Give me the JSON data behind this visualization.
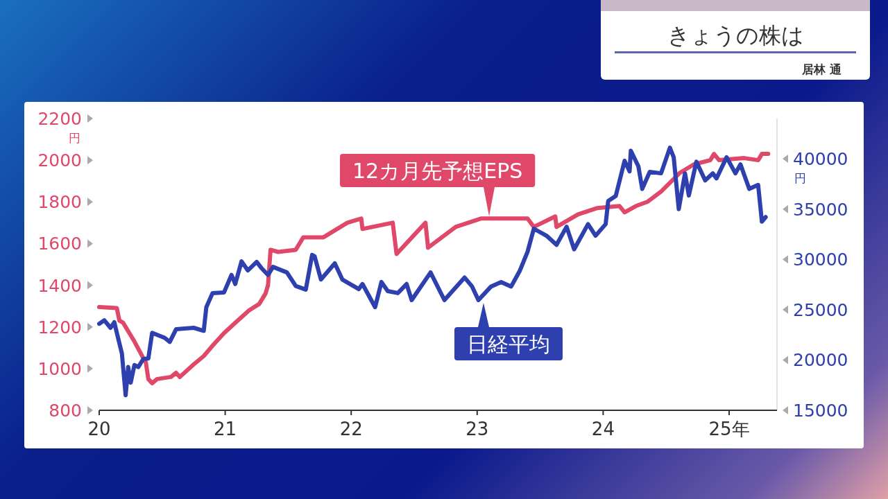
{
  "chart_data": {
    "type": "line",
    "title": "きょうの株は",
    "subtitle": "居林 通",
    "ylabel": "円",
    "y2label": "円",
    "xlim": [
      20,
      25.38
    ],
    "xticks": [
      20,
      21,
      22,
      23,
      24,
      {
        "value": 25,
        "label": "25年"
      }
    ],
    "ylim": [
      800,
      2200
    ],
    "yticks": [
      800,
      1000,
      1200,
      1400,
      1600,
      1800,
      2000,
      2200
    ],
    "y2lim": [
      15000,
      44000
    ],
    "y2ticks": [
      15000,
      20000,
      25000,
      30000,
      35000,
      40000
    ],
    "series": [
      {
        "name": "12カ月先予想EPS",
        "color": "#e0486a",
        "axis": "y",
        "x": [
          20,
          20.14,
          20.16,
          20.19,
          20.28,
          20.35,
          20.37,
          20.39,
          20.42,
          20.46,
          20.57,
          20.61,
          20.64,
          20.75,
          20.83,
          20.9,
          20.99,
          21.08,
          21.19,
          21.27,
          21.32,
          21.34,
          21.36,
          21.42,
          21.56,
          21.62,
          21.75,
          21.78,
          21.97,
          22.08,
          22.09,
          22.33,
          22.36,
          22.59,
          22.61,
          22.83,
          23.03,
          23.29,
          23.4,
          23.45,
          23.62,
          23.63,
          23.8,
          23.95,
          24.13,
          24.17,
          24.26,
          24.35,
          24.46,
          24.61,
          24.72,
          24.85,
          24.88,
          24.92,
          25.12,
          25.23,
          25.26,
          25.31
        ],
        "values": [
          1295,
          1290,
          1230,
          1220,
          1130,
          1050,
          1030,
          950,
          930,
          950,
          960,
          980,
          960,
          1020,
          1060,
          1110,
          1170,
          1220,
          1280,
          1310,
          1360,
          1400,
          1570,
          1560,
          1570,
          1630,
          1630,
          1630,
          1700,
          1720,
          1670,
          1700,
          1550,
          1700,
          1580,
          1680,
          1720,
          1720,
          1720,
          1680,
          1730,
          1680,
          1740,
          1770,
          1780,
          1750,
          1780,
          1800,
          1850,
          1940,
          1980,
          2000,
          2030,
          2000,
          2010,
          2000,
          2030,
          2030
        ]
      },
      {
        "name": "日経平均",
        "color": "#2e3fae",
        "axis": "y2",
        "x": [
          20,
          20.04,
          20.09,
          20.12,
          20.14,
          20.18,
          20.21,
          20.23,
          20.25,
          20.28,
          20.31,
          20.35,
          20.39,
          20.42,
          20.52,
          20.56,
          20.61,
          20.75,
          20.83,
          20.85,
          20.9,
          20.99,
          21.05,
          21.08,
          21.13,
          21.18,
          21.25,
          21.29,
          21.34,
          21.38,
          21.49,
          21.56,
          21.64,
          21.69,
          21.71,
          21.76,
          21.87,
          21.93,
          22.06,
          22.09,
          22.19,
          22.24,
          22.29,
          22.37,
          22.44,
          22.48,
          22.63,
          22.74,
          22.9,
          22.96,
          23.01,
          23.11,
          23.19,
          23.27,
          23.34,
          23.4,
          23.45,
          23.55,
          23.63,
          23.71,
          23.77,
          23.88,
          23.94,
          24.02,
          24.04,
          24.1,
          24.17,
          24.21,
          24.22,
          24.28,
          24.31,
          24.37,
          24.46,
          24.53,
          24.56,
          24.6,
          24.65,
          24.68,
          24.74,
          24.81,
          24.87,
          24.9,
          24.98,
          25.05,
          25.09,
          25.16,
          25.23,
          25.26,
          25.29
        ],
        "values": [
          23600,
          23950,
          23200,
          23750,
          22700,
          20650,
          16500,
          19300,
          17750,
          19500,
          19300,
          20100,
          20150,
          22700,
          22200,
          21800,
          23050,
          23200,
          22900,
          25250,
          26650,
          26700,
          28450,
          27550,
          29800,
          28900,
          29750,
          29100,
          28450,
          29250,
          28700,
          27350,
          27000,
          30450,
          30300,
          28000,
          29600,
          28000,
          27050,
          27550,
          25250,
          27750,
          26850,
          26650,
          27550,
          25950,
          28700,
          25950,
          28200,
          27300,
          25950,
          27300,
          27750,
          27300,
          28900,
          30750,
          33050,
          32350,
          31450,
          33250,
          31000,
          33500,
          32350,
          33500,
          35800,
          36300,
          39800,
          38750,
          40800,
          39250,
          37000,
          38700,
          38550,
          41100,
          40150,
          35000,
          38550,
          36350,
          39700,
          37850,
          38550,
          38050,
          40150,
          38550,
          39450,
          37000,
          37400,
          33750,
          34200
        ]
      }
    ]
  }
}
